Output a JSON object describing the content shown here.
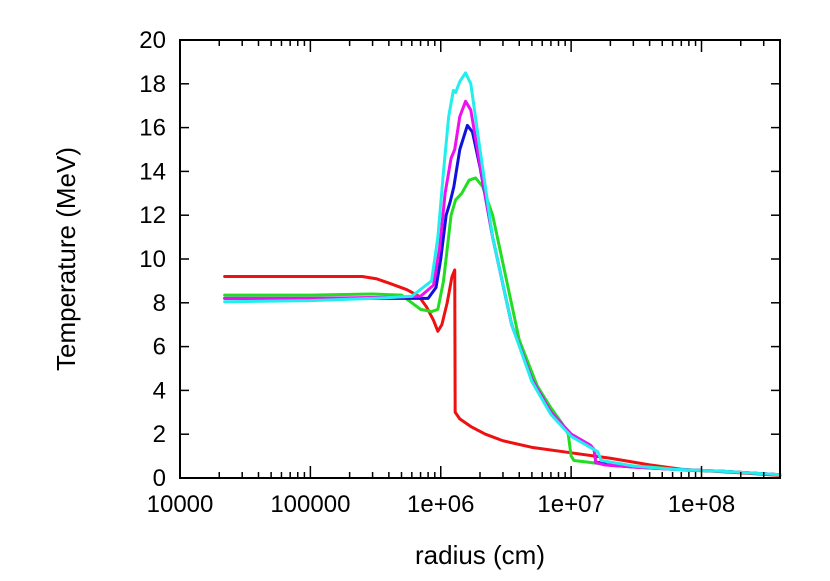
{
  "chart_data": {
    "type": "line",
    "title": "",
    "xlabel": "radius (cm)",
    "ylabel": "Temperature (MeV)",
    "xscale": "log",
    "xlim": [
      10000,
      400000000
    ],
    "ylim": [
      0,
      20
    ],
    "x_ticks": [
      {
        "value": 10000,
        "label": "10000"
      },
      {
        "value": 100000,
        "label": "100000"
      },
      {
        "value": 1000000,
        "label": "1e+06"
      },
      {
        "value": 10000000,
        "label": "1e+07"
      },
      {
        "value": 100000000,
        "label": "1e+08"
      }
    ],
    "y_ticks": [
      {
        "value": 0,
        "label": "0"
      },
      {
        "value": 2,
        "label": "2"
      },
      {
        "value": 4,
        "label": "4"
      },
      {
        "value": 6,
        "label": "6"
      },
      {
        "value": 8,
        "label": "8"
      },
      {
        "value": 10,
        "label": "10"
      },
      {
        "value": 12,
        "label": "12"
      },
      {
        "value": 14,
        "label": "14"
      },
      {
        "value": 16,
        "label": "16"
      },
      {
        "value": 18,
        "label": "18"
      },
      {
        "value": 20,
        "label": "20"
      }
    ],
    "grid": false,
    "legend": "none",
    "series": [
      {
        "color": "#ee1111",
        "points": [
          [
            22000,
            9.2
          ],
          [
            100000,
            9.2
          ],
          [
            250000,
            9.2
          ],
          [
            320000,
            9.1
          ],
          [
            400000,
            8.9
          ],
          [
            550000,
            8.6
          ],
          [
            680000,
            8.3
          ],
          [
            780000,
            7.8
          ],
          [
            880000,
            7.2
          ],
          [
            950000,
            6.7
          ],
          [
            1020000,
            7.0
          ],
          [
            1120000,
            8.0
          ],
          [
            1220000,
            9.2
          ],
          [
            1280000,
            9.5
          ],
          [
            1290000,
            3.0
          ],
          [
            1400000,
            2.7
          ],
          [
            1700000,
            2.35
          ],
          [
            2200000,
            2.0
          ],
          [
            3000000,
            1.7
          ],
          [
            5000000,
            1.4
          ],
          [
            10000000,
            1.15
          ],
          [
            20000000,
            0.9
          ],
          [
            40000000,
            0.6
          ],
          [
            70000000,
            0.4
          ],
          [
            130000000,
            0.3
          ],
          [
            250000000,
            0.2
          ],
          [
            400000000,
            0.12
          ]
        ]
      },
      {
        "color": "#22dd22",
        "points": [
          [
            22000,
            8.35
          ],
          [
            100000,
            8.35
          ],
          [
            300000,
            8.4
          ],
          [
            500000,
            8.35
          ],
          [
            600000,
            8.0
          ],
          [
            700000,
            7.7
          ],
          [
            850000,
            7.6
          ],
          [
            950000,
            7.7
          ],
          [
            1050000,
            9.0
          ],
          [
            1200000,
            12.0
          ],
          [
            1300000,
            12.7
          ],
          [
            1450000,
            13.0
          ],
          [
            1650000,
            13.6
          ],
          [
            1850000,
            13.7
          ],
          [
            2100000,
            13.3
          ],
          [
            2500000,
            12.0
          ],
          [
            3000000,
            9.8
          ],
          [
            4000000,
            6.3
          ],
          [
            5500000,
            4.2
          ],
          [
            7000000,
            3.2
          ],
          [
            8500000,
            2.5
          ],
          [
            9500000,
            2.0
          ],
          [
            10000000,
            1.0
          ],
          [
            10500000,
            0.8
          ],
          [
            20000000,
            0.6
          ],
          [
            40000000,
            0.5
          ],
          [
            80000000,
            0.35
          ],
          [
            150000000,
            0.3
          ],
          [
            400000000,
            0.15
          ]
        ]
      },
      {
        "color": "#1111dd",
        "points": [
          [
            22000,
            8.2
          ],
          [
            100000,
            8.2
          ],
          [
            500000,
            8.2
          ],
          [
            800000,
            8.2
          ],
          [
            920000,
            8.7
          ],
          [
            1000000,
            10.0
          ],
          [
            1100000,
            12.0
          ],
          [
            1180000,
            12.6
          ],
          [
            1260000,
            13.3
          ],
          [
            1400000,
            15.0
          ],
          [
            1600000,
            16.1
          ],
          [
            1750000,
            15.8
          ],
          [
            2000000,
            14.2
          ],
          [
            2500000,
            11.0
          ],
          [
            3500000,
            7.0
          ],
          [
            5000000,
            4.5
          ],
          [
            7000000,
            3.0
          ],
          [
            10000000,
            2.0
          ],
          [
            14000000,
            1.5
          ],
          [
            15000000,
            1.3
          ],
          [
            15500000,
            0.7
          ],
          [
            18000000,
            0.7
          ],
          [
            18500000,
            0.6
          ],
          [
            30000000,
            0.5
          ],
          [
            60000000,
            0.4
          ],
          [
            150000000,
            0.3
          ],
          [
            400000000,
            0.15
          ]
        ]
      },
      {
        "color": "#ee11ee",
        "points": [
          [
            22000,
            8.2
          ],
          [
            100000,
            8.2
          ],
          [
            400000,
            8.25
          ],
          [
            700000,
            8.3
          ],
          [
            880000,
            8.8
          ],
          [
            980000,
            10.5
          ],
          [
            1080000,
            13.0
          ],
          [
            1200000,
            14.6
          ],
          [
            1280000,
            15.0
          ],
          [
            1400000,
            16.5
          ],
          [
            1550000,
            17.2
          ],
          [
            1700000,
            16.8
          ],
          [
            2000000,
            14.3
          ],
          [
            2500000,
            11.0
          ],
          [
            3500000,
            7.0
          ],
          [
            5000000,
            4.5
          ],
          [
            7000000,
            3.0
          ],
          [
            10000000,
            2.0
          ],
          [
            14000000,
            1.5
          ],
          [
            15000000,
            1.3
          ],
          [
            15500000,
            0.7
          ],
          [
            18000000,
            0.6
          ],
          [
            30000000,
            0.5
          ],
          [
            60000000,
            0.4
          ],
          [
            150000000,
            0.3
          ],
          [
            400000000,
            0.15
          ]
        ]
      },
      {
        "color": "#22eeee",
        "points": [
          [
            22000,
            8.05
          ],
          [
            100000,
            8.1
          ],
          [
            300000,
            8.2
          ],
          [
            600000,
            8.3
          ],
          [
            850000,
            9.0
          ],
          [
            950000,
            11.0
          ],
          [
            1050000,
            14.0
          ],
          [
            1150000,
            16.5
          ],
          [
            1250000,
            17.7
          ],
          [
            1300000,
            17.6
          ],
          [
            1400000,
            18.1
          ],
          [
            1550000,
            18.5
          ],
          [
            1700000,
            18.0
          ],
          [
            2000000,
            15.0
          ],
          [
            2500000,
            11.0
          ],
          [
            3500000,
            7.0
          ],
          [
            5000000,
            4.4
          ],
          [
            7000000,
            2.9
          ],
          [
            10000000,
            1.9
          ],
          [
            14000000,
            1.4
          ],
          [
            16000000,
            1.2
          ],
          [
            17000000,
            0.8
          ],
          [
            30000000,
            0.55
          ],
          [
            60000000,
            0.4
          ],
          [
            150000000,
            0.3
          ],
          [
            400000000,
            0.15
          ]
        ]
      }
    ]
  }
}
